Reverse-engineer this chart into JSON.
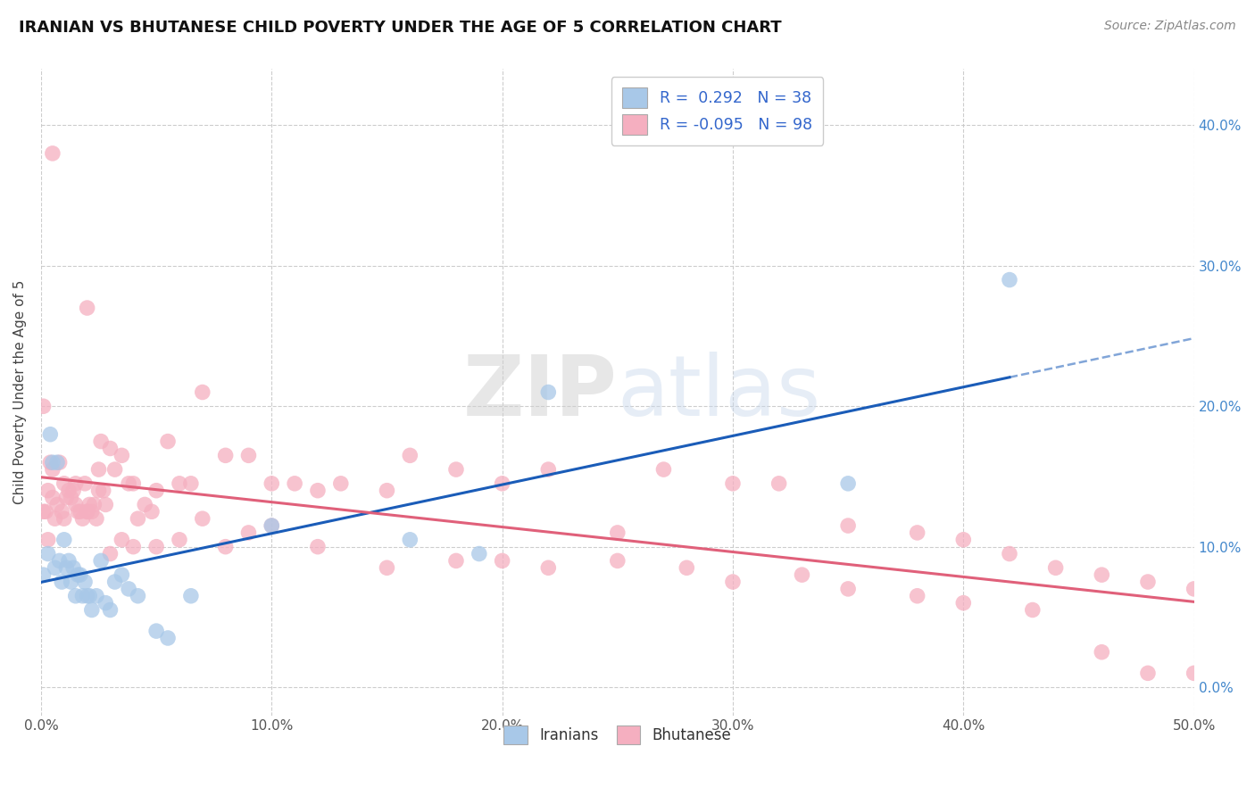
{
  "title": "IRANIAN VS BHUTANESE CHILD POVERTY UNDER THE AGE OF 5 CORRELATION CHART",
  "source": "Source: ZipAtlas.com",
  "ylabel": "Child Poverty Under the Age of 5",
  "xlim": [
    0.0,
    0.5
  ],
  "ylim": [
    -0.02,
    0.44
  ],
  "iranians_R": 0.292,
  "iranians_N": 38,
  "bhutanese_R": -0.095,
  "bhutanese_N": 98,
  "iranians_color": "#a8c8e8",
  "bhutanese_color": "#f5afc0",
  "iranians_line_color": "#1a5cb8",
  "bhutanese_line_color": "#e0607a",
  "grid_color": "#c8c8c8",
  "background_color": "#ffffff",
  "watermark_zip": "ZIP",
  "watermark_atlas": "atlas",
  "iranians_x": [
    0.001,
    0.003,
    0.004,
    0.005,
    0.006,
    0.007,
    0.008,
    0.009,
    0.01,
    0.011,
    0.012,
    0.013,
    0.014,
    0.015,
    0.016,
    0.017,
    0.018,
    0.019,
    0.02,
    0.021,
    0.022,
    0.024,
    0.026,
    0.028,
    0.03,
    0.032,
    0.035,
    0.038,
    0.042,
    0.05,
    0.055,
    0.065,
    0.1,
    0.16,
    0.19,
    0.22,
    0.35,
    0.42
  ],
  "iranians_y": [
    0.08,
    0.095,
    0.18,
    0.16,
    0.085,
    0.16,
    0.09,
    0.075,
    0.105,
    0.085,
    0.09,
    0.075,
    0.085,
    0.065,
    0.08,
    0.08,
    0.065,
    0.075,
    0.065,
    0.065,
    0.055,
    0.065,
    0.09,
    0.06,
    0.055,
    0.075,
    0.08,
    0.07,
    0.065,
    0.04,
    0.035,
    0.065,
    0.115,
    0.105,
    0.095,
    0.21,
    0.145,
    0.29
  ],
  "bhutanese_x": [
    0.001,
    0.002,
    0.003,
    0.004,
    0.005,
    0.006,
    0.007,
    0.008,
    0.009,
    0.01,
    0.011,
    0.012,
    0.013,
    0.014,
    0.015,
    0.016,
    0.017,
    0.018,
    0.019,
    0.02,
    0.021,
    0.022,
    0.023,
    0.024,
    0.025,
    0.026,
    0.027,
    0.028,
    0.03,
    0.032,
    0.035,
    0.038,
    0.04,
    0.042,
    0.045,
    0.048,
    0.05,
    0.055,
    0.06,
    0.065,
    0.07,
    0.08,
    0.09,
    0.1,
    0.11,
    0.12,
    0.13,
    0.15,
    0.16,
    0.18,
    0.2,
    0.22,
    0.25,
    0.27,
    0.3,
    0.32,
    0.35,
    0.38,
    0.4,
    0.42,
    0.44,
    0.46,
    0.48,
    0.5,
    0.001,
    0.003,
    0.005,
    0.01,
    0.015,
    0.02,
    0.025,
    0.03,
    0.035,
    0.04,
    0.05,
    0.06,
    0.07,
    0.08,
    0.09,
    0.1,
    0.12,
    0.15,
    0.18,
    0.2,
    0.22,
    0.25,
    0.28,
    0.3,
    0.33,
    0.35,
    0.38,
    0.4,
    0.43,
    0.46,
    0.48,
    0.5,
    0.005,
    0.02
  ],
  "bhutanese_y": [
    0.2,
    0.125,
    0.14,
    0.16,
    0.155,
    0.12,
    0.13,
    0.16,
    0.125,
    0.145,
    0.135,
    0.14,
    0.135,
    0.14,
    0.13,
    0.125,
    0.125,
    0.12,
    0.145,
    0.125,
    0.13,
    0.125,
    0.13,
    0.12,
    0.155,
    0.175,
    0.14,
    0.13,
    0.17,
    0.155,
    0.165,
    0.145,
    0.145,
    0.12,
    0.13,
    0.125,
    0.14,
    0.175,
    0.145,
    0.145,
    0.21,
    0.165,
    0.165,
    0.145,
    0.145,
    0.14,
    0.145,
    0.14,
    0.165,
    0.155,
    0.145,
    0.155,
    0.11,
    0.155,
    0.145,
    0.145,
    0.115,
    0.11,
    0.105,
    0.095,
    0.085,
    0.08,
    0.075,
    0.07,
    0.125,
    0.105,
    0.135,
    0.12,
    0.145,
    0.125,
    0.14,
    0.095,
    0.105,
    0.1,
    0.1,
    0.105,
    0.12,
    0.1,
    0.11,
    0.115,
    0.1,
    0.085,
    0.09,
    0.09,
    0.085,
    0.09,
    0.085,
    0.075,
    0.08,
    0.07,
    0.065,
    0.06,
    0.055,
    0.025,
    0.01,
    0.01,
    0.38,
    0.27
  ]
}
